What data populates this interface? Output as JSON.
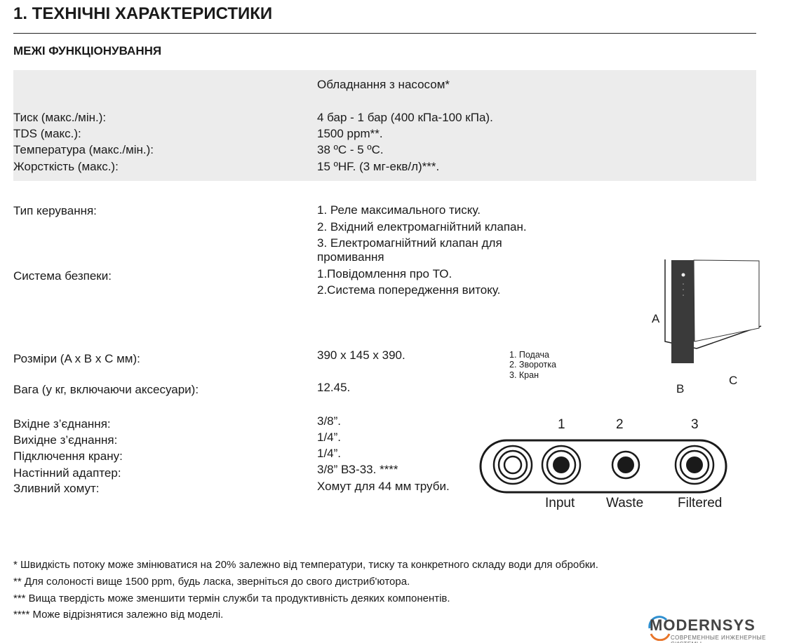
{
  "title": "1. ТЕХНІЧНІ ХАРАКТЕРИСТИКИ",
  "subtitle": "МЕЖІ ФУНКЦІОНУВАННЯ",
  "band": {
    "header": "Обладнання з насосом*",
    "rows": [
      {
        "label": "Тиск (макс./мін.):",
        "value": "4 бар - 1 бар (400 кПа-100 кПа)."
      },
      {
        "label": "TDS (макс.):",
        "value": "1500 ppm**."
      },
      {
        "label": "Температура (макс./мін.):",
        "value": "38 ºC - 5 ºC."
      },
      {
        "label": "Жорсткість (макс.):",
        "value": "15 ºHF. (3 мг-екв/л)***."
      }
    ]
  },
  "control": {
    "label": "Тип керування:",
    "values": [
      "1. Реле максимального тиску.",
      "2. Вхідний електромагнійтний клапан.",
      "3. Електромагнійтний клапан для",
      "промивання"
    ]
  },
  "safety": {
    "label": "Система безпеки:",
    "values": [
      "1.Повідомлення про ТО.",
      "2.Система попередження витоку."
    ]
  },
  "size": {
    "label": "Розміри (A x B x C мм):",
    "value": "390 x 145 x 390."
  },
  "weight": {
    "label": "Вага (у кг, включаючи аксесуари):",
    "value": "12.45."
  },
  "connections": [
    {
      "label": "Вхідне з’єднання:",
      "value": "3/8”."
    },
    {
      "label": "Вихідне з’єднання:",
      "value": "1/4”."
    },
    {
      "label": "Підключення крану:",
      "value": "1/4”."
    },
    {
      "label": "Настінний адаптер:",
      "value": "3/8” ВЗ-33. ****"
    },
    {
      "label": "Зливний хомут:",
      "value": "Хомут для 44 мм труби."
    }
  ],
  "legend": [
    "1.  Подача",
    "2. Зворотка",
    "3. Кран"
  ],
  "dims": {
    "a": "A",
    "b": "B",
    "c": "C"
  },
  "ports": {
    "numbers": [
      "1",
      "2",
      "3"
    ],
    "names": [
      "Input",
      "Waste",
      "Filtered"
    ]
  },
  "footnotes": [
    "* Швидкість потоку може змінюватися на 20% залежно від температури, тиску та конкретного складу води для обробки.",
    "** Для солоності вище 1500 ppm, будь ласка, зверніться до свого дистриб'ютора.",
    "*** Вища твердість може зменшити термін служби та продуктивність деяких компонентів.",
    "**** Може відрізнятися залежно від моделі."
  ],
  "logo": {
    "name": "MODERNSYS",
    "tagline": "СОВРЕМЕННЫЕ ИНЖЕНЕРНЫЕ СИСТЕМЫ",
    "colors": {
      "blue": "#2e8fd0",
      "orange": "#e8752a",
      "gray": "#444444"
    }
  }
}
